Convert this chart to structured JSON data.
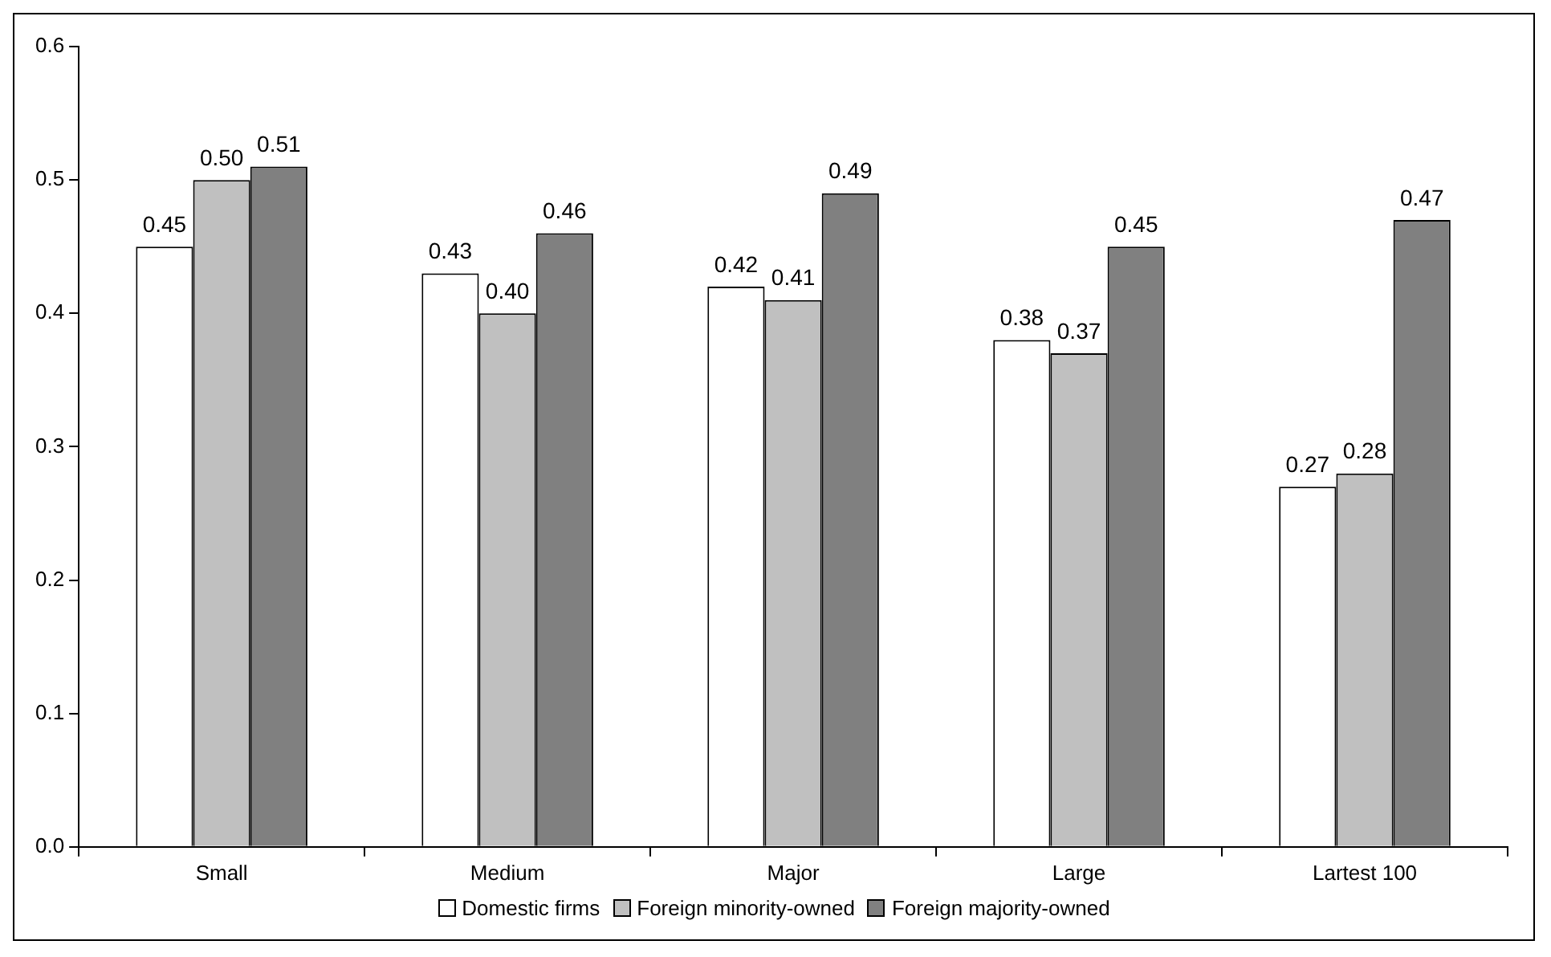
{
  "chart_data": {
    "type": "bar",
    "categories": [
      "Small",
      "Medium",
      "Major",
      "Large",
      "Lartest 100"
    ],
    "series": [
      {
        "name": "Domestic firms",
        "color": "#ffffff",
        "values": [
          0.45,
          0.43,
          0.42,
          0.38,
          0.27
        ],
        "value_labels": [
          "0.45",
          "0.43",
          "0.42",
          "0.38",
          "0.27"
        ]
      },
      {
        "name": "Foreign minority-owned",
        "color": "#c0c0c0",
        "values": [
          0.5,
          0.4,
          0.41,
          0.37,
          0.28
        ],
        "value_labels": [
          "0.50",
          "0.40",
          "0.41",
          "0.37",
          "0.28"
        ]
      },
      {
        "name": "Foreign majority-owned",
        "color": "#808080",
        "values": [
          0.51,
          0.46,
          0.49,
          0.45,
          0.47
        ],
        "value_labels": [
          "0.51",
          "0.46",
          "0.49",
          "0.45",
          "0.47"
        ]
      }
    ],
    "ylim": [
      0,
      0.6
    ],
    "yticks": [
      {
        "value": 0,
        "label": "0.0"
      },
      0.1,
      0.2,
      0.3,
      0.4,
      0.5,
      0.6
    ],
    "grid": false,
    "legend": "bottom"
  }
}
